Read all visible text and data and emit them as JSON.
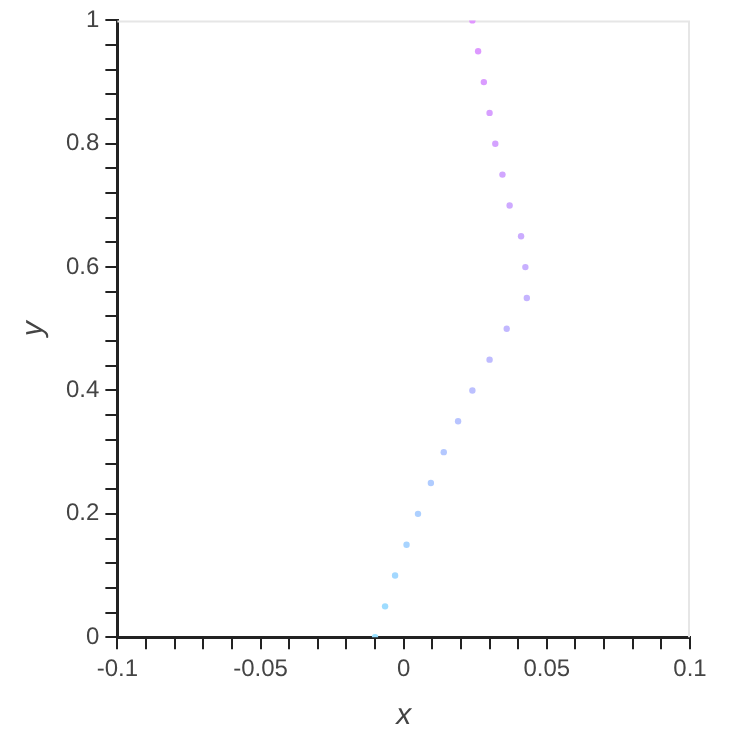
{
  "chart_data": {
    "type": "scatter",
    "xlabel": "x",
    "ylabel": "y",
    "marker": "circle",
    "grid": false,
    "legend": false,
    "xlim": [
      -0.1,
      0.1
    ],
    "ylim": [
      0,
      1
    ],
    "xticks": [
      {
        "value": -0.1,
        "label": "-0.1"
      },
      {
        "value": -0.09,
        "label": null
      },
      {
        "value": -0.08,
        "label": null
      },
      {
        "value": -0.07,
        "label": null
      },
      {
        "value": -0.06,
        "label": null
      },
      {
        "value": -0.05,
        "label": "-0.05"
      },
      {
        "value": -0.04,
        "label": null
      },
      {
        "value": -0.03,
        "label": null
      },
      {
        "value": -0.02,
        "label": null
      },
      {
        "value": -0.01,
        "label": null
      },
      0,
      {
        "value": 0.01,
        "label": null
      },
      {
        "value": 0.02,
        "label": null
      },
      {
        "value": 0.03,
        "label": null
      },
      {
        "value": 0.04,
        "label": null
      },
      0.05,
      {
        "value": 0.06,
        "label": null
      },
      {
        "value": 0.07,
        "label": null
      },
      {
        "value": 0.08,
        "label": null
      },
      {
        "value": 0.09,
        "label": null
      },
      0.1
    ],
    "yticks": [
      0,
      {
        "value": 0.04,
        "label": null
      },
      {
        "value": 0.08,
        "label": null
      },
      {
        "value": 0.12,
        "label": null
      },
      {
        "value": 0.16,
        "label": null
      },
      0.2,
      {
        "value": 0.24,
        "label": null
      },
      {
        "value": 0.28,
        "label": null
      },
      {
        "value": 0.32,
        "label": null
      },
      {
        "value": 0.36,
        "label": null
      },
      0.4,
      {
        "value": 0.44,
        "label": null
      },
      {
        "value": 0.48,
        "label": null
      },
      {
        "value": 0.52,
        "label": null
      },
      {
        "value": 0.56,
        "label": null
      },
      0.6,
      {
        "value": 0.64,
        "label": null
      },
      {
        "value": 0.68,
        "label": null
      },
      {
        "value": 0.72,
        "label": null
      },
      {
        "value": 0.76,
        "label": null
      },
      0.8,
      {
        "value": 0.84,
        "label": null
      },
      {
        "value": 0.88,
        "label": null
      },
      {
        "value": 0.92,
        "label": null
      },
      {
        "value": 0.96,
        "label": null
      },
      1
    ],
    "series": [
      {
        "x": [
          -0.01,
          -0.0065,
          -0.003,
          0.001,
          0.005,
          0.0095,
          0.014,
          0.019,
          0.024,
          0.03,
          0.036,
          0.043,
          0.0425,
          0.041,
          0.037,
          0.0345,
          0.032,
          0.03,
          0.028,
          0.026,
          0.024
        ],
        "values": [
          0,
          0.05,
          0.1,
          0.15,
          0.2,
          0.25,
          0.3,
          0.35,
          0.4,
          0.45,
          0.5,
          0.55,
          0.6,
          0.65,
          0.7,
          0.75,
          0.8,
          0.85,
          0.9,
          0.95,
          1
        ],
        "colors": [
          "#99e0ff",
          "#9edcff",
          "#a3d8ff",
          "#a8d4ff",
          "#add0ff",
          "#b0ccff",
          "#b4c8ff",
          "#b8c4ff",
          "#bcc0ff",
          "#bfbcff",
          "#c2b8ff",
          "#c5b4ff",
          "#c8b0ff",
          "#cbacff",
          "#ceaaff",
          "#d1a6ff",
          "#d4a2ff",
          "#d79fff",
          "#da9cff",
          "#dd99ff",
          "#e096ff"
        ]
      }
    ]
  }
}
